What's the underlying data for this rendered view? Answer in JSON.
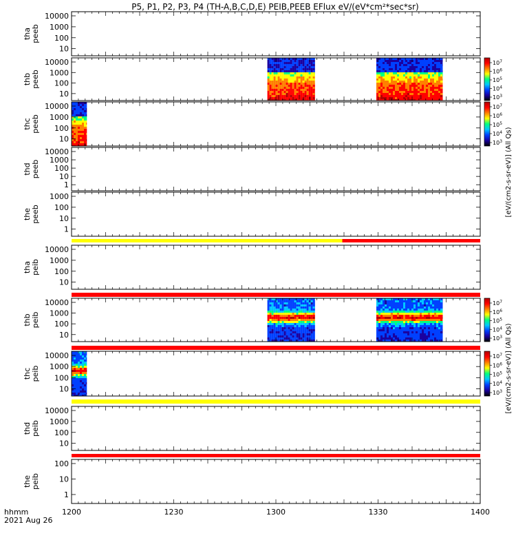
{
  "chart_data": {
    "type": "heatmap",
    "title": "P5, P1, P2, P3, P4 (TH-A,B,C,D,E) PEIB,PEEB EFlux eV/(eV*cm²*sec*sr)",
    "x_axis": {
      "ticks": [
        "1200",
        "1230",
        "1300",
        "1330",
        "1400"
      ],
      "range_minutes": [
        0,
        120
      ],
      "label_line1": "hhmm",
      "label_line2": "2021 Aug 26"
    },
    "colorbar_label": "[eV/(cm2-s-sr-eV)] (All Qs)",
    "colormap": [
      "#000000",
      "#1a00a0",
      "#0040ff",
      "#00c8ff",
      "#00ff80",
      "#ffff00",
      "#ff8000",
      "#ff0000",
      "#b00000"
    ],
    "colorbars": [
      {
        "tick_labels": [
          "10^7",
          "10^6",
          "10^5",
          "10^4",
          "10^3"
        ]
      },
      {
        "tick_labels": [
          "10^7",
          "10^6",
          "10^5",
          "10^4",
          "10^3"
        ]
      },
      {
        "tick_labels": [
          "10^7",
          "10^6",
          "10^5",
          "10^4",
          "10^3"
        ]
      },
      {
        "tick_labels": [
          "10^7",
          "10^6",
          "10^5",
          "10^4",
          "10^3"
        ]
      }
    ],
    "panels": [
      {
        "label_line1": "tha",
        "label_line2": "peeb",
        "y_ticks": [
          "10000",
          "1000",
          "100",
          "10"
        ],
        "coverage": []
      },
      {
        "label_line1": "thb",
        "label_line2": "peeb",
        "y_ticks": [
          "10000",
          "1000",
          "100",
          "10"
        ],
        "coverage": [
          [
            57.5,
            71.5
          ],
          [
            89.5,
            109
          ]
        ]
      },
      {
        "label_line1": "thc",
        "label_line2": "peeb",
        "y_ticks": [
          "10000",
          "1000",
          "100",
          "10"
        ],
        "coverage": [
          [
            0,
            4.5
          ]
        ]
      },
      {
        "label_line1": "thd",
        "label_line2": "peeb",
        "y_ticks": [
          "10000",
          "1000",
          "100",
          "10",
          "1"
        ],
        "coverage": []
      },
      {
        "label_line1": "the",
        "label_line2": "peeb",
        "y_ticks": [
          "1000",
          "100",
          "10",
          "1"
        ],
        "coverage": []
      },
      {
        "label_line1": "tha",
        "label_line2": "peib",
        "y_ticks": [
          "10000",
          "1000",
          "100",
          "10"
        ],
        "coverage": []
      },
      {
        "label_line1": "thb",
        "label_line2": "peib",
        "y_ticks": [
          "10000",
          "1000",
          "100",
          "10"
        ],
        "coverage": [
          [
            57.5,
            71.5
          ],
          [
            89.5,
            109
          ]
        ]
      },
      {
        "label_line1": "thc",
        "label_line2": "peib",
        "y_ticks": [
          "10000",
          "1000",
          "100",
          "10"
        ],
        "coverage": [
          [
            0,
            4.5
          ]
        ]
      },
      {
        "label_line1": "thd",
        "label_line2": "peib",
        "y_ticks": [
          "10000",
          "1000",
          "100",
          "10"
        ],
        "coverage": []
      },
      {
        "label_line1": "the",
        "label_line2": "peib",
        "y_ticks": [
          "100",
          "10",
          "1"
        ],
        "coverage": []
      }
    ],
    "status_bars": [
      {
        "segments": [
          {
            "from": 0,
            "to": 79.5,
            "color": "#ffff00"
          },
          {
            "from": 79.5,
            "to": 120,
            "color": "#ff0000"
          }
        ]
      },
      {
        "segments": [
          {
            "from": 0,
            "to": 120,
            "color": "#ff0000"
          }
        ]
      },
      {
        "segments": [
          {
            "from": 0,
            "to": 120,
            "color": "#ff0000"
          }
        ]
      },
      {
        "segments": [
          {
            "from": 0,
            "to": 120,
            "color": "#ffff00"
          }
        ]
      },
      {
        "segments": [
          {
            "from": 0,
            "to": 120,
            "color": "#ff0000"
          }
        ]
      }
    ]
  }
}
